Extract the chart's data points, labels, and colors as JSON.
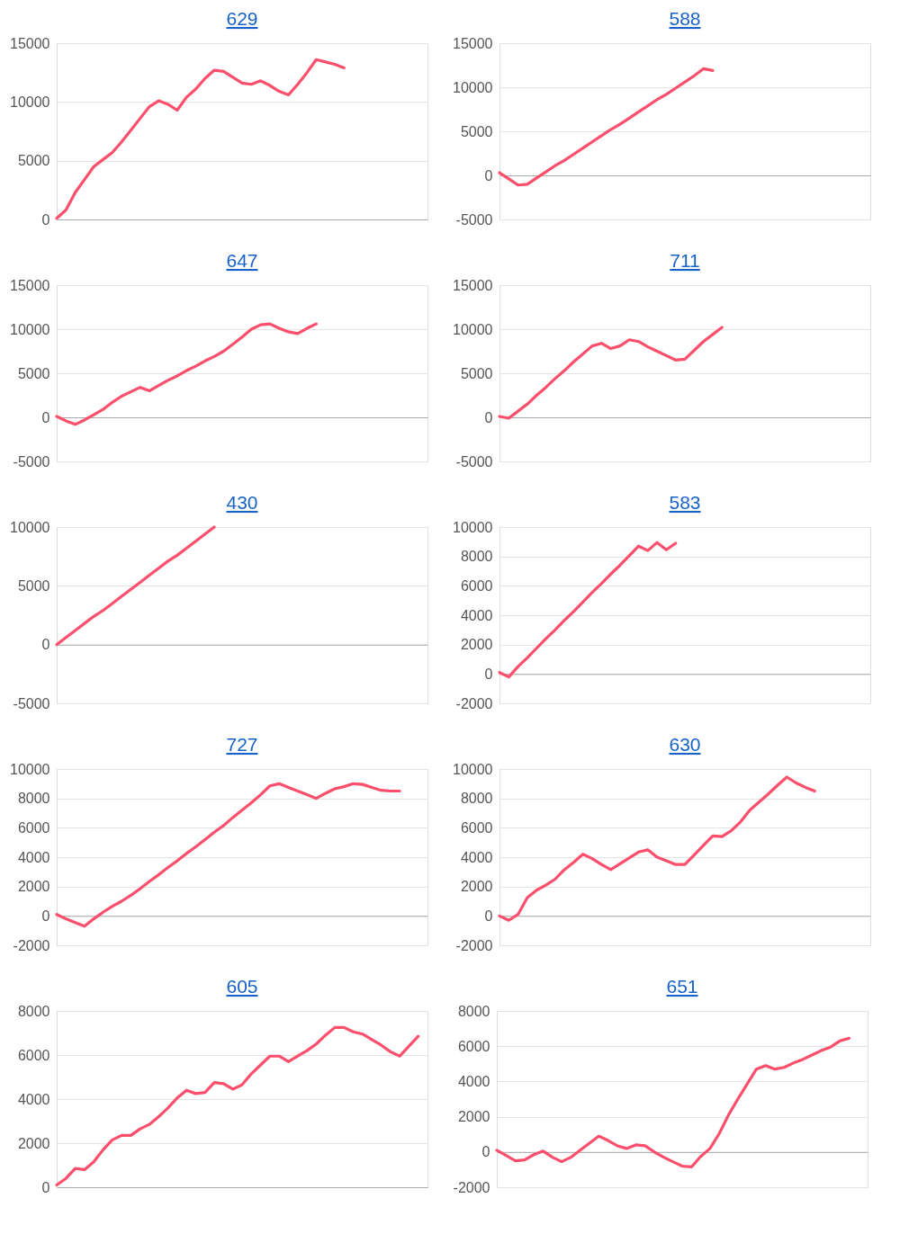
{
  "chart_data": [
    {
      "type": "line",
      "title": "629",
      "categories": [
        null,
        null,
        null,
        null,
        null,
        null,
        null,
        null,
        null,
        null,
        null,
        null,
        null,
        null,
        null,
        null,
        null,
        null,
        null,
        null,
        null,
        null,
        null,
        null,
        null,
        null,
        null,
        null,
        null,
        null,
        null,
        null,
        null,
        null,
        null,
        null,
        null,
        null,
        null,
        null,
        null
      ],
      "series": [
        {
          "color": "#fb4f6c",
          "values": [
            100,
            800,
            2300,
            3400,
            4500,
            5100,
            5700,
            6600,
            7600,
            8600,
            9600,
            10100,
            9800,
            9300,
            10400,
            11100,
            12000,
            12700,
            12600,
            12100,
            11600,
            11500,
            11800,
            11400,
            10900,
            10600,
            11500,
            12500,
            13600,
            13400,
            13200,
            12900,
            null,
            null,
            null,
            null,
            null,
            null,
            null,
            null,
            null
          ]
        }
      ],
      "ylim": [
        0,
        15000
      ],
      "yticks": [
        0,
        5000,
        10000,
        15000
      ],
      "grid": "y",
      "tick_labels": "y",
      "line_style": "solid"
    },
    {
      "type": "line",
      "title": "588",
      "categories": [
        null,
        null,
        null,
        null,
        null,
        null,
        null,
        null,
        null,
        null,
        null,
        null,
        null,
        null,
        null,
        null,
        null,
        null,
        null,
        null,
        null,
        null,
        null,
        null,
        null,
        null,
        null,
        null,
        null,
        null,
        null,
        null,
        null,
        null,
        null,
        null,
        null,
        null,
        null,
        null,
        null
      ],
      "series": [
        {
          "color": "#fb4f6c",
          "values": [
            300,
            -400,
            -1100,
            -1000,
            -300,
            400,
            1100,
            1700,
            2400,
            3100,
            3800,
            4500,
            5200,
            5800,
            6500,
            7200,
            7900,
            8600,
            9200,
            9900,
            10600,
            11300,
            12100,
            11900,
            null,
            null,
            null,
            null,
            null,
            null,
            null,
            null,
            null,
            null,
            null,
            null,
            null,
            null,
            null,
            null,
            null
          ]
        }
      ],
      "ylim": [
        -5000,
        15000
      ],
      "yticks": [
        -5000,
        0,
        5000,
        10000,
        15000
      ],
      "grid": "y",
      "tick_labels": "y",
      "line_style": "solid"
    },
    {
      "type": "line",
      "title": "647",
      "categories": [
        null,
        null,
        null,
        null,
        null,
        null,
        null,
        null,
        null,
        null,
        null,
        null,
        null,
        null,
        null,
        null,
        null,
        null,
        null,
        null,
        null,
        null,
        null,
        null,
        null,
        null,
        null,
        null,
        null,
        null,
        null,
        null,
        null,
        null,
        null,
        null,
        null,
        null,
        null,
        null,
        null
      ],
      "series": [
        {
          "color": "#fb4f6c",
          "values": [
            100,
            -400,
            -800,
            -300,
            300,
            900,
            1700,
            2400,
            2900,
            3400,
            3000,
            3600,
            4200,
            4700,
            5300,
            5800,
            6400,
            6900,
            7500,
            8300,
            9100,
            10000,
            10500,
            10600,
            10100,
            9700,
            9500,
            10100,
            10600,
            null,
            null,
            null,
            null,
            null,
            null,
            null,
            null,
            null,
            null,
            null,
            null
          ]
        }
      ],
      "ylim": [
        -5000,
        15000
      ],
      "yticks": [
        -5000,
        0,
        5000,
        10000,
        15000
      ],
      "grid": "y",
      "tick_labels": "y",
      "line_style": "solid"
    },
    {
      "type": "line",
      "title": "711",
      "categories": [
        null,
        null,
        null,
        null,
        null,
        null,
        null,
        null,
        null,
        null,
        null,
        null,
        null,
        null,
        null,
        null,
        null,
        null,
        null,
        null,
        null,
        null,
        null,
        null,
        null,
        null,
        null,
        null,
        null,
        null,
        null,
        null,
        null,
        null,
        null,
        null,
        null,
        null,
        null,
        null,
        null
      ],
      "series": [
        {
          "color": "#fb4f6c",
          "values": [
            100,
            -100,
            700,
            1500,
            2500,
            3400,
            4400,
            5300,
            6300,
            7200,
            8100,
            8400,
            7800,
            8100,
            8800,
            8600,
            8000,
            7500,
            7000,
            6500,
            6600,
            7600,
            8600,
            9400,
            10200,
            null,
            null,
            null,
            null,
            null,
            null,
            null,
            null,
            null,
            null,
            null,
            null,
            null,
            null,
            null,
            null
          ]
        }
      ],
      "ylim": [
        -5000,
        15000
      ],
      "yticks": [
        -5000,
        0,
        5000,
        10000,
        15000
      ],
      "grid": "y",
      "tick_labels": "y",
      "line_style": "solid"
    },
    {
      "type": "line",
      "title": "430",
      "categories": [
        null,
        null,
        null,
        null,
        null,
        null,
        null,
        null,
        null,
        null,
        null,
        null,
        null,
        null,
        null,
        null,
        null,
        null,
        null,
        null,
        null,
        null,
        null,
        null,
        null,
        null,
        null,
        null,
        null,
        null,
        null,
        null,
        null,
        null,
        null,
        null,
        null,
        null,
        null,
        null,
        null
      ],
      "series": [
        {
          "color": "#fb4f6c",
          "values": [
            0,
            600,
            1200,
            1800,
            2400,
            2900,
            3500,
            4100,
            4700,
            5300,
            5900,
            6500,
            7100,
            7600,
            8200,
            8800,
            9400,
            10000,
            null,
            null,
            null,
            null,
            null,
            null,
            null,
            null,
            null,
            null,
            null,
            null,
            null,
            null,
            null,
            null,
            null,
            null,
            null,
            null,
            null,
            null,
            null
          ]
        }
      ],
      "ylim": [
        -5000,
        10000
      ],
      "yticks": [
        -5000,
        0,
        5000,
        10000
      ],
      "grid": "y",
      "tick_labels": "y",
      "line_style": "solid"
    },
    {
      "type": "line",
      "title": "583",
      "categories": [
        null,
        null,
        null,
        null,
        null,
        null,
        null,
        null,
        null,
        null,
        null,
        null,
        null,
        null,
        null,
        null,
        null,
        null,
        null,
        null,
        null,
        null,
        null,
        null,
        null,
        null,
        null,
        null,
        null,
        null,
        null,
        null,
        null,
        null,
        null,
        null,
        null,
        null,
        null,
        null,
        null
      ],
      "series": [
        {
          "color": "#fb4f6c",
          "values": [
            100,
            -200,
            500,
            1100,
            1750,
            2400,
            3000,
            3650,
            4250,
            4900,
            5550,
            6150,
            6800,
            7400,
            8050,
            8700,
            8400,
            8950,
            8450,
            8900,
            null,
            null,
            null,
            null,
            null,
            null,
            null,
            null,
            null,
            null,
            null,
            null,
            null,
            null,
            null,
            null,
            null,
            null,
            null,
            null,
            null
          ]
        }
      ],
      "ylim": [
        -2000,
        10000
      ],
      "yticks": [
        -2000,
        0,
        2000,
        4000,
        6000,
        8000,
        10000
      ],
      "grid": "y",
      "tick_labels": "y",
      "line_style": "solid"
    },
    {
      "type": "line",
      "title": "727",
      "categories": [
        null,
        null,
        null,
        null,
        null,
        null,
        null,
        null,
        null,
        null,
        null,
        null,
        null,
        null,
        null,
        null,
        null,
        null,
        null,
        null,
        null,
        null,
        null,
        null,
        null,
        null,
        null,
        null,
        null,
        null,
        null,
        null,
        null,
        null,
        null,
        null,
        null,
        null,
        null,
        null,
        null
      ],
      "series": [
        {
          "color": "#fb4f6c",
          "values": [
            100,
            -200,
            -450,
            -700,
            -200,
            250,
            650,
            1000,
            1400,
            1850,
            2350,
            2800,
            3300,
            3750,
            4250,
            4700,
            5200,
            5700,
            6150,
            6700,
            7200,
            7700,
            8250,
            8850,
            9000,
            8750,
            8500,
            8250,
            8000,
            8350,
            8650,
            8800,
            9000,
            8950,
            8750,
            8550,
            8500,
            8500,
            null,
            null,
            null
          ]
        }
      ],
      "ylim": [
        -2000,
        10000
      ],
      "yticks": [
        -2000,
        0,
        2000,
        4000,
        6000,
        8000,
        10000
      ],
      "grid": "y",
      "tick_labels": "y",
      "line_style": "solid"
    },
    {
      "type": "line",
      "title": "630",
      "categories": [
        null,
        null,
        null,
        null,
        null,
        null,
        null,
        null,
        null,
        null,
        null,
        null,
        null,
        null,
        null,
        null,
        null,
        null,
        null,
        null,
        null,
        null,
        null,
        null,
        null,
        null,
        null,
        null,
        null,
        null,
        null,
        null,
        null,
        null,
        null,
        null,
        null,
        null,
        null,
        null,
        null
      ],
      "series": [
        {
          "color": "#fb4f6c",
          "values": [
            0,
            -300,
            100,
            1250,
            1750,
            2100,
            2500,
            3150,
            3650,
            4200,
            3900,
            3500,
            3150,
            3550,
            3950,
            4350,
            4500,
            4000,
            3750,
            3500,
            3500,
            4150,
            4800,
            5450,
            5400,
            5800,
            6400,
            7200,
            7750,
            8300,
            8900,
            9450,
            9050,
            8750,
            8500,
            null,
            null,
            null,
            null,
            null,
            null
          ]
        }
      ],
      "ylim": [
        -2000,
        10000
      ],
      "yticks": [
        -2000,
        0,
        2000,
        4000,
        6000,
        8000,
        10000
      ],
      "grid": "y",
      "tick_labels": "y",
      "line_style": "solid"
    },
    {
      "type": "line",
      "title": "605",
      "categories": [
        null,
        null,
        null,
        null,
        null,
        null,
        null,
        null,
        null,
        null,
        null,
        null,
        null,
        null,
        null,
        null,
        null,
        null,
        null,
        null,
        null,
        null,
        null,
        null,
        null,
        null,
        null,
        null,
        null,
        null,
        null,
        null,
        null,
        null,
        null,
        null,
        null,
        null,
        null,
        null,
        null
      ],
      "series": [
        {
          "color": "#fb4f6c",
          "values": [
            100,
            400,
            850,
            800,
            1150,
            1700,
            2150,
            2350,
            2350,
            2650,
            2850,
            3200,
            3600,
            4050,
            4400,
            4250,
            4300,
            4750,
            4700,
            4450,
            4650,
            5150,
            5550,
            5950,
            5950,
            5700,
            5950,
            6200,
            6500,
            6900,
            7250,
            7250,
            7050,
            6950,
            6700,
            6450,
            6150,
            5950,
            6400,
            6850,
            null
          ]
        }
      ],
      "ylim": [
        0,
        8000
      ],
      "yticks": [
        0,
        2000,
        4000,
        6000,
        8000
      ],
      "grid": "y",
      "tick_labels": "y",
      "line_style": "solid"
    },
    {
      "type": "line",
      "title": "651",
      "categories": [
        null,
        null,
        null,
        null,
        null,
        null,
        null,
        null,
        null,
        null,
        null,
        null,
        null,
        null,
        null,
        null,
        null,
        null,
        null,
        null,
        null,
        null,
        null,
        null,
        null,
        null,
        null,
        null,
        null,
        null,
        null,
        null,
        null,
        null,
        null,
        null,
        null,
        null,
        null,
        null,
        null
      ],
      "series": [
        {
          "color": "#fb4f6c",
          "values": [
            100,
            -200,
            -500,
            -450,
            -150,
            50,
            -300,
            -550,
            -300,
            100,
            500,
            900,
            650,
            350,
            200,
            400,
            350,
            0,
            -300,
            -550,
            -800,
            -850,
            -250,
            200,
            1050,
            2100,
            3000,
            3850,
            4700,
            4900,
            4700,
            4800,
            5050,
            5250,
            5500,
            5750,
            5950,
            6300,
            6450,
            null,
            null
          ]
        }
      ],
      "ylim": [
        -2000,
        8000
      ],
      "yticks": [
        -2000,
        0,
        2000,
        4000,
        6000,
        8000
      ],
      "grid": "y",
      "tick_labels": "y",
      "line_style": "solid"
    }
  ]
}
